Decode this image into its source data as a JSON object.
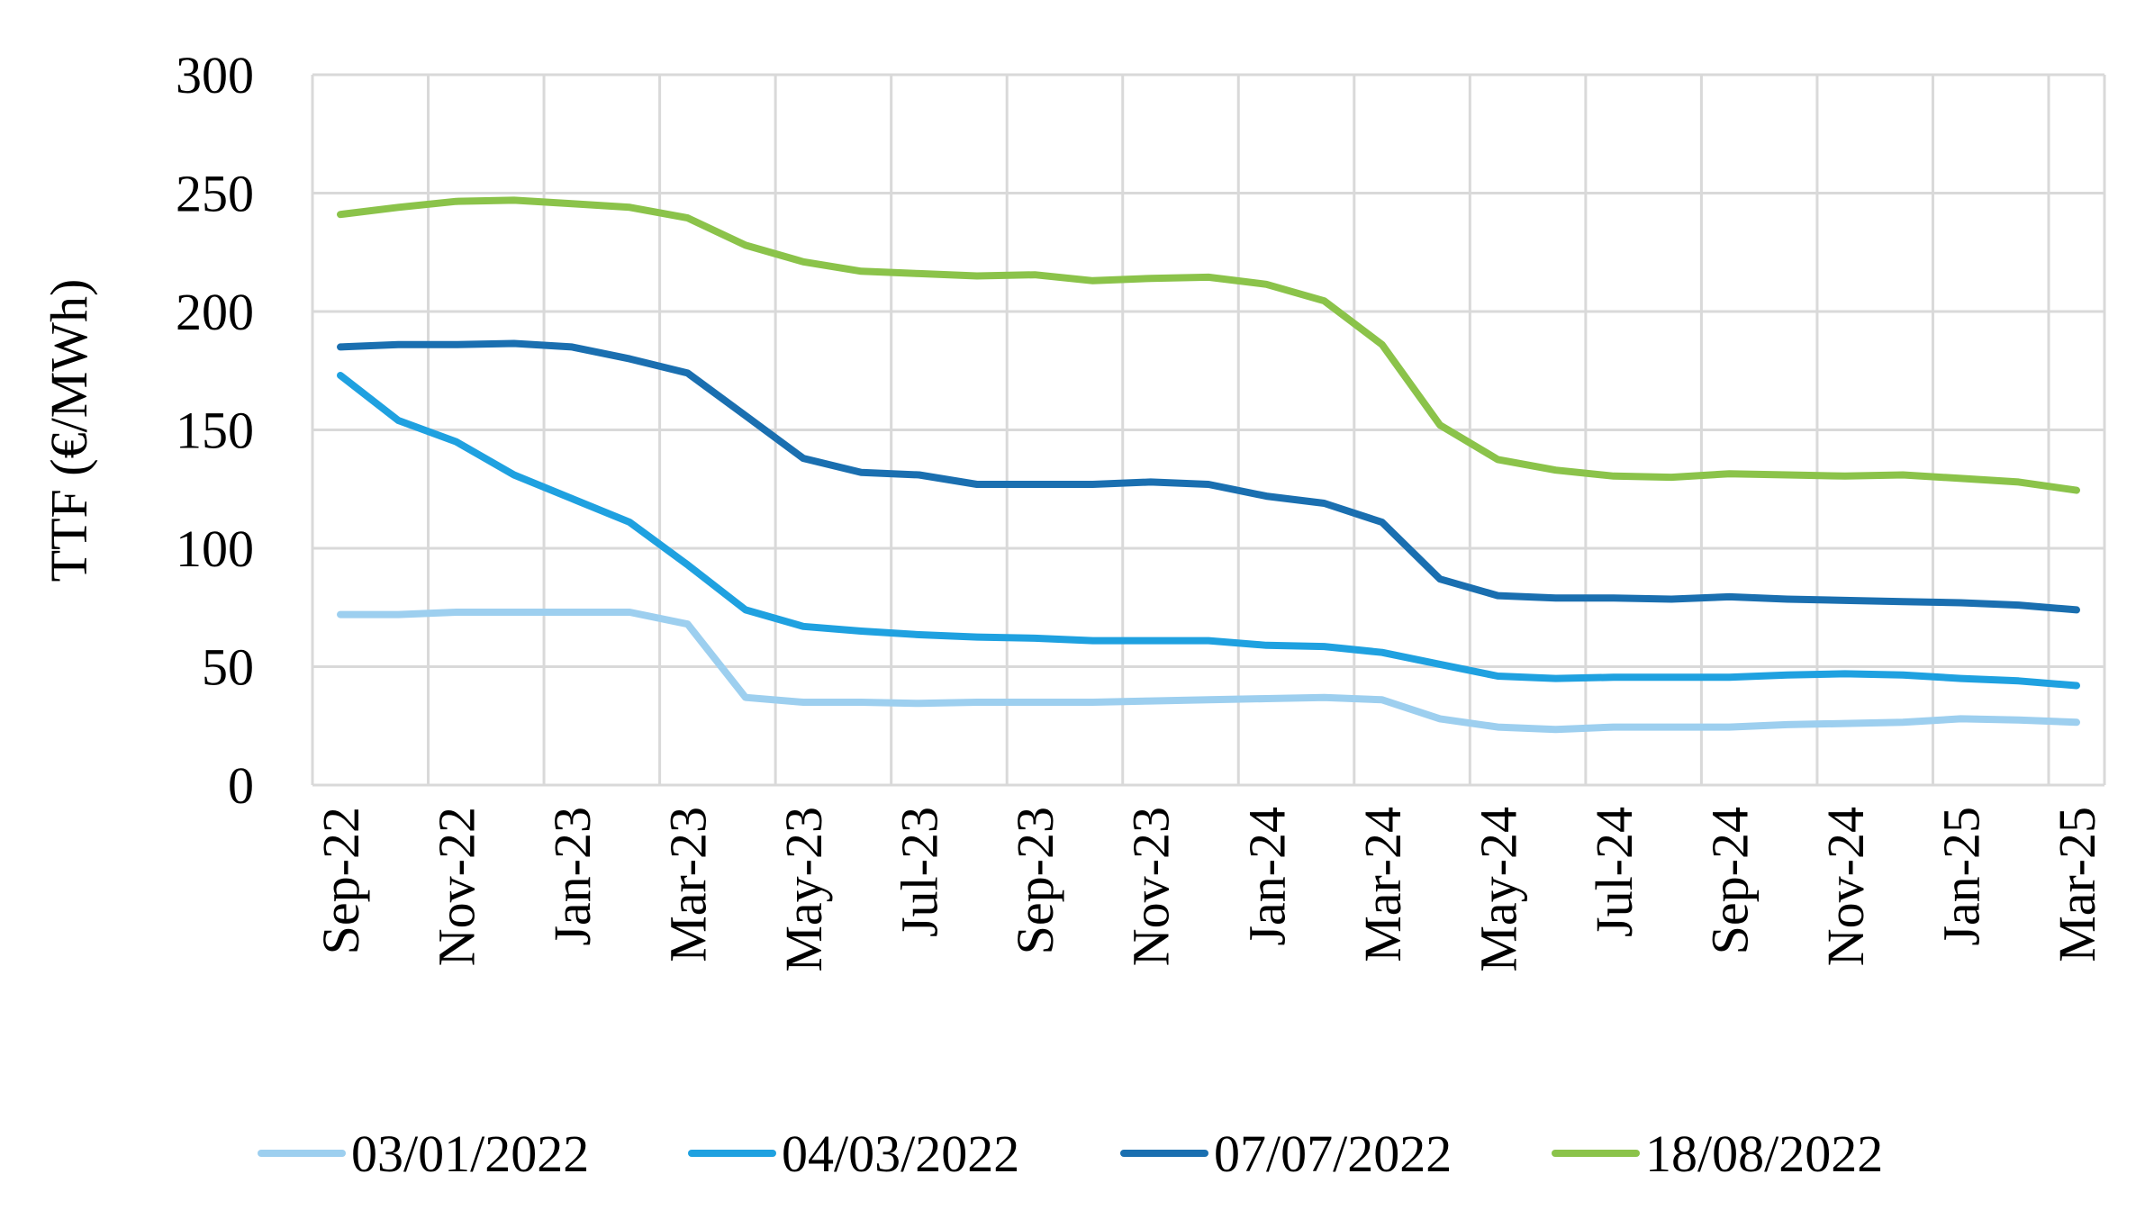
{
  "chart_data": {
    "type": "line",
    "title": "",
    "xlabel": "",
    "ylabel": "TTF (€/MWh)",
    "ylim": [
      0,
      300
    ],
    "yticks": [
      0,
      50,
      100,
      150,
      200,
      250,
      300
    ],
    "grid": true,
    "legend_position": "bottom",
    "x": [
      "Sep-22",
      "Oct-22",
      "Nov-22",
      "Dec-22",
      "Jan-23",
      "Feb-23",
      "Mar-23",
      "Apr-23",
      "May-23",
      "Jun-23",
      "Jul-23",
      "Aug-23",
      "Sep-23",
      "Oct-23",
      "Nov-23",
      "Dec-23",
      "Jan-24",
      "Feb-24",
      "Mar-24",
      "Apr-24",
      "May-24",
      "Jun-24",
      "Jul-24",
      "Aug-24",
      "Sep-24",
      "Oct-24",
      "Nov-24",
      "Dec-24",
      "Jan-25",
      "Feb-25",
      "Mar-25"
    ],
    "x_tick_labels": [
      "Sep-22",
      "Nov-22",
      "Jan-23",
      "Mar-23",
      "May-23",
      "Jul-23",
      "Sep-23",
      "Nov-23",
      "Jan-24",
      "Mar-24",
      "May-24",
      "Jul-24",
      "Sep-24",
      "Nov-24",
      "Jan-25",
      "Mar-25"
    ],
    "series": [
      {
        "name": "03/01/2022",
        "color": "#9dcfef",
        "values": [
          72,
          72,
          73,
          73,
          73,
          73,
          68,
          37,
          35,
          35,
          34.5,
          35,
          35,
          35,
          35.5,
          36,
          36.5,
          37,
          36,
          28,
          24.5,
          23.5,
          24.5,
          24.5,
          24.5,
          25.5,
          26,
          26.5,
          28,
          27.5,
          26.5
        ]
      },
      {
        "name": "04/03/2022",
        "color": "#1fa1e0",
        "values": [
          173,
          154,
          145,
          131,
          121,
          111,
          93,
          74,
          67,
          65,
          63.5,
          62.5,
          62,
          61,
          61,
          61,
          59,
          58.5,
          56,
          51,
          46,
          45,
          45.5,
          45.5,
          45.5,
          46.5,
          47,
          46.5,
          45,
          44,
          42
        ]
      },
      {
        "name": "07/07/2022",
        "color": "#1a6fb0",
        "values": [
          185,
          186,
          186,
          186.5,
          185,
          180,
          174,
          156,
          138,
          132,
          131,
          127,
          127,
          127,
          128,
          127,
          122,
          119,
          111,
          87,
          80,
          79,
          79,
          78.5,
          79.5,
          78.5,
          78,
          77.5,
          77,
          76,
          74
        ]
      },
      {
        "name": "18/08/2022",
        "color": "#8bc34a",
        "values": [
          241,
          244,
          246.5,
          247,
          245.5,
          244,
          239.5,
          228,
          221,
          217,
          216,
          215,
          215.5,
          213,
          214,
          214.5,
          211.5,
          204.5,
          186,
          152,
          137.5,
          133,
          130.5,
          130,
          131.5,
          131,
          130.5,
          131,
          129.5,
          128,
          124.5
        ]
      }
    ]
  }
}
